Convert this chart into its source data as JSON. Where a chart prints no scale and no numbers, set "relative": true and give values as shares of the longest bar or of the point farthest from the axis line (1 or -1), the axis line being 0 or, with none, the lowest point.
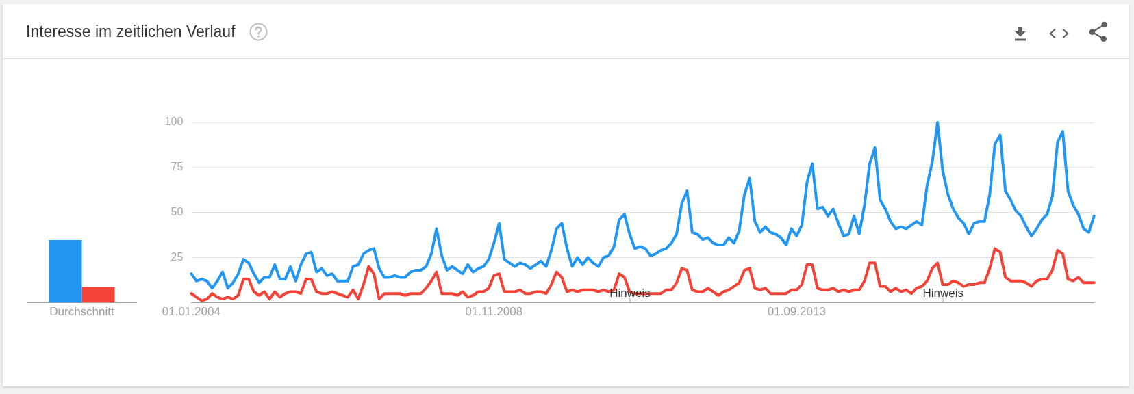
{
  "chart_data": [
    {
      "type": "bar",
      "title": "Interesse im zeitlichen Verlauf",
      "categories": [
        "Durchschnitt"
      ],
      "relative": true,
      "series": [
        {
          "color": "#2196f3",
          "values": [
            1
          ]
        },
        {
          "color": "#f44336",
          "values": [
            0.25
          ]
        }
      ]
    },
    {
      "type": "line",
      "x": [
        "2004-01",
        "2004-02",
        "2004-03",
        "2004-04",
        "2004-05",
        "2004-06",
        "2004-07",
        "2004-08",
        "2004-09",
        "2004-10",
        "2004-11",
        "2004-12",
        "2005-01",
        "2005-02",
        "2005-03",
        "2005-04",
        "2005-05",
        "2005-06",
        "2005-07",
        "2005-08",
        "2005-09",
        "2005-10",
        "2005-11",
        "2005-12",
        "2006-01",
        "2006-02",
        "2006-03",
        "2006-04",
        "2006-05",
        "2006-06",
        "2006-07",
        "2006-08",
        "2006-09",
        "2006-10",
        "2006-11",
        "2006-12",
        "2007-01",
        "2007-02",
        "2007-03",
        "2007-04",
        "2007-05",
        "2007-06",
        "2007-07",
        "2007-08",
        "2007-09",
        "2007-10",
        "2007-11",
        "2007-12",
        "2008-01",
        "2008-02",
        "2008-03",
        "2008-04",
        "2008-05",
        "2008-06",
        "2008-07",
        "2008-08",
        "2008-09",
        "2008-10",
        "2008-11",
        "2008-12",
        "2009-01",
        "2009-02",
        "2009-03",
        "2009-04",
        "2009-05",
        "2009-06",
        "2009-07",
        "2009-08",
        "2009-09",
        "2009-10",
        "2009-11",
        "2009-12",
        "2010-01",
        "2010-02",
        "2010-03",
        "2010-04",
        "2010-05",
        "2010-06",
        "2010-07",
        "2010-08",
        "2010-09",
        "2010-10",
        "2010-11",
        "2010-12",
        "2011-01",
        "2011-02",
        "2011-03",
        "2011-04",
        "2011-05",
        "2011-06",
        "2011-07",
        "2011-08",
        "2011-09",
        "2011-10",
        "2011-11",
        "2011-12",
        "2012-01",
        "2012-02",
        "2012-03",
        "2012-04",
        "2012-05",
        "2012-06",
        "2012-07",
        "2012-08",
        "2012-09",
        "2012-10",
        "2012-11",
        "2012-12",
        "2013-01",
        "2013-02",
        "2013-03",
        "2013-04",
        "2013-05",
        "2013-06",
        "2013-07",
        "2013-08",
        "2013-09",
        "2013-10",
        "2013-11",
        "2013-12",
        "2014-01",
        "2014-02",
        "2014-03",
        "2014-04",
        "2014-05",
        "2014-06",
        "2014-07",
        "2014-08",
        "2014-09",
        "2014-10",
        "2014-11",
        "2014-12",
        "2015-01",
        "2015-02",
        "2015-03",
        "2015-04",
        "2015-05",
        "2015-06",
        "2015-07",
        "2015-08",
        "2015-09",
        "2015-10",
        "2015-11",
        "2015-12",
        "2016-01",
        "2016-02",
        "2016-03",
        "2016-04",
        "2016-05",
        "2016-06",
        "2016-07",
        "2016-08",
        "2016-09",
        "2016-10",
        "2016-11",
        "2016-12",
        "2017-01",
        "2017-02",
        "2017-03",
        "2017-04",
        "2017-05",
        "2017-06",
        "2017-07",
        "2017-08",
        "2017-09",
        "2017-10",
        "2017-11",
        "2017-12",
        "2018-01",
        "2018-02",
        "2018-03",
        "2018-04",
        "2018-05",
        "2018-06"
      ],
      "series": [
        {
          "color": "#2196f3",
          "values": [
            16,
            12,
            13,
            12,
            8,
            12,
            17,
            8,
            11,
            16,
            24,
            22,
            16,
            11,
            14,
            14,
            21,
            13,
            13,
            20,
            12,
            21,
            27,
            28,
            17,
            19,
            15,
            16,
            12,
            12,
            12,
            20,
            21,
            27,
            29,
            30,
            19,
            14,
            14,
            15,
            14,
            14,
            17,
            18,
            18,
            20,
            27,
            41,
            26,
            18,
            20,
            18,
            16,
            21,
            17,
            19,
            20,
            24,
            33,
            44,
            24,
            22,
            20,
            22,
            21,
            19,
            21,
            23,
            20,
            29,
            41,
            44,
            30,
            20,
            25,
            21,
            25,
            22,
            20,
            25,
            26,
            31,
            46,
            49,
            38,
            30,
            31,
            30,
            26,
            27,
            29,
            30,
            33,
            38,
            55,
            62,
            39,
            38,
            35,
            36,
            33,
            32,
            32,
            36,
            33,
            40,
            60,
            69,
            45,
            39,
            42,
            39,
            38,
            36,
            32,
            41,
            37,
            43,
            67,
            77,
            52,
            53,
            48,
            52,
            44,
            37,
            38,
            48,
            38,
            54,
            77,
            86,
            57,
            52,
            45,
            41,
            42,
            41,
            43,
            45,
            43,
            65,
            78,
            100,
            73,
            60,
            52,
            47,
            44,
            38,
            44,
            45,
            45,
            60,
            88,
            93,
            62,
            57,
            51,
            48,
            42,
            37,
            41,
            46,
            49,
            59,
            89,
            95,
            62,
            54,
            49,
            41,
            39,
            48
          ]
        },
        {
          "color": "#f44336",
          "values": [
            5,
            3,
            1,
            2,
            5,
            3,
            2,
            3,
            2,
            4,
            13,
            13,
            6,
            4,
            6,
            2,
            6,
            3,
            5,
            6,
            6,
            5,
            13,
            13,
            6,
            5,
            5,
            6,
            5,
            4,
            3,
            7,
            2,
            10,
            20,
            16,
            2,
            5,
            5,
            5,
            5,
            4,
            5,
            5,
            5,
            8,
            12,
            17,
            5,
            5,
            5,
            4,
            6,
            3,
            4,
            6,
            6,
            8,
            15,
            16,
            6,
            6,
            6,
            7,
            5,
            5,
            6,
            6,
            5,
            10,
            17,
            14,
            6,
            7,
            6,
            7,
            7,
            7,
            6,
            7,
            6,
            7,
            16,
            14,
            6,
            5,
            5,
            5,
            5,
            5,
            5,
            7,
            7,
            11,
            19,
            18,
            7,
            6,
            6,
            8,
            6,
            4,
            6,
            7,
            9,
            11,
            18,
            19,
            8,
            7,
            8,
            5,
            5,
            5,
            5,
            7,
            7,
            10,
            21,
            21,
            8,
            7,
            7,
            8,
            6,
            7,
            6,
            7,
            7,
            12,
            22,
            22,
            9,
            9,
            6,
            8,
            6,
            7,
            5,
            8,
            9,
            12,
            19,
            22,
            10,
            10,
            12,
            11,
            9,
            10,
            10,
            11,
            11,
            19,
            30,
            28,
            14,
            12,
            12,
            12,
            11,
            9,
            12,
            13,
            13,
            18,
            29,
            27,
            13,
            12,
            14,
            11,
            11,
            11
          ]
        }
      ],
      "xlim": [
        "2004-01",
        "2018-06"
      ],
      "xticks": [
        {
          "value": "2004-01",
          "label": "01.01.2004"
        },
        {
          "value": "2008-11",
          "label": "01.11.2008"
        },
        {
          "value": "2013-09",
          "label": "01.09.2013"
        }
      ],
      "ylim": [
        0,
        100
      ],
      "yticks": [
        25,
        50,
        75,
        100
      ],
      "grid": "y",
      "annotations": [
        "Hinweis",
        "Hinweis"
      ]
    }
  ]
}
